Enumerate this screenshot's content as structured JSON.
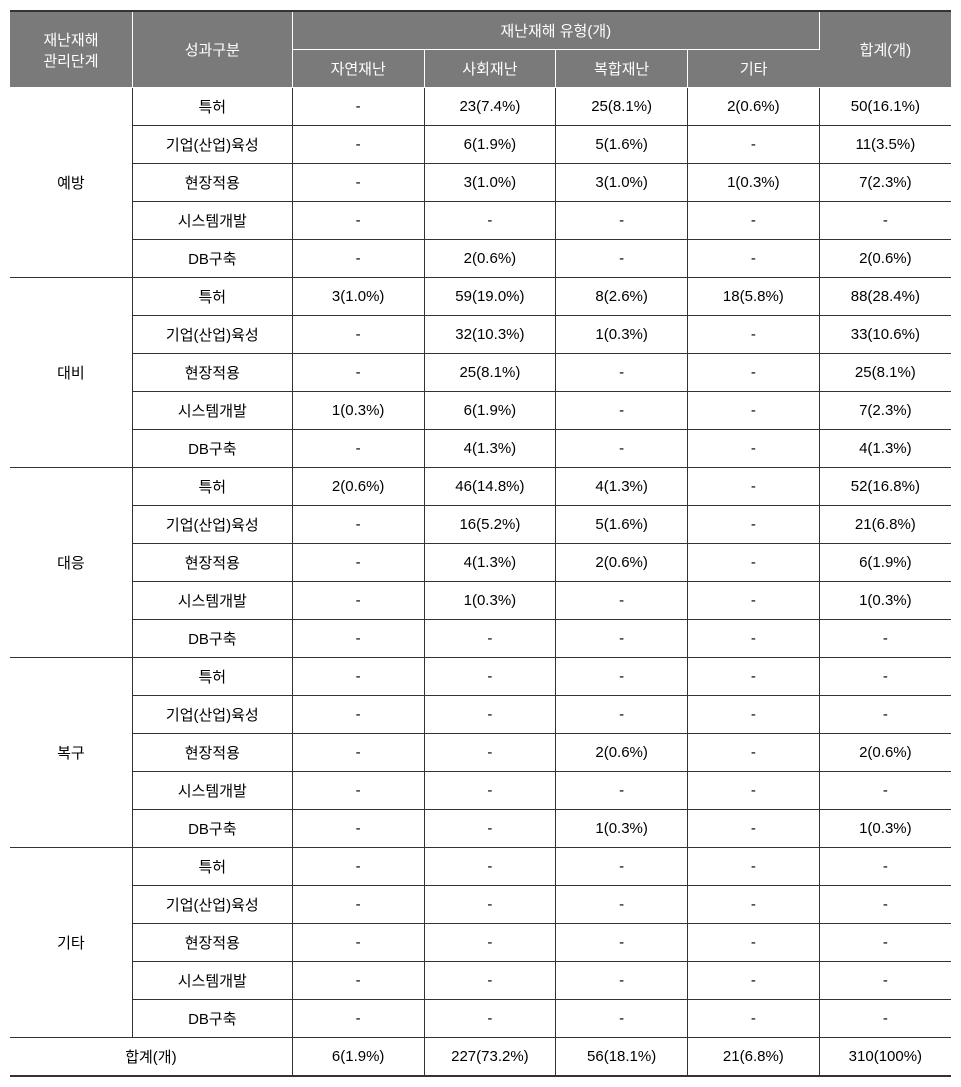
{
  "table": {
    "headers": {
      "col1": "재난재해\n관리단계",
      "col2": "성과구분",
      "col3_group": "재난재해 유형(개)",
      "col3_sub1": "자연재난",
      "col3_sub2": "사회재난",
      "col3_sub3": "복합재난",
      "col3_sub4": "기타",
      "col4": "합계(개)"
    },
    "groups": [
      {
        "name": "예방",
        "rows": [
          {
            "category": "특허",
            "v1": "-",
            "v2": "23(7.4%)",
            "v3": "25(8.1%)",
            "v4": "2(0.6%)",
            "total": "50(16.1%)"
          },
          {
            "category": "기업(산업)육성",
            "v1": "-",
            "v2": "6(1.9%)",
            "v3": "5(1.6%)",
            "v4": "-",
            "total": "11(3.5%)"
          },
          {
            "category": "현장적용",
            "v1": "-",
            "v2": "3(1.0%)",
            "v3": "3(1.0%)",
            "v4": "1(0.3%)",
            "total": "7(2.3%)"
          },
          {
            "category": "시스템개발",
            "v1": "-",
            "v2": "-",
            "v3": "-",
            "v4": "-",
            "total": "-"
          },
          {
            "category": "DB구축",
            "v1": "-",
            "v2": "2(0.6%)",
            "v3": "-",
            "v4": "-",
            "total": "2(0.6%)"
          }
        ]
      },
      {
        "name": "대비",
        "rows": [
          {
            "category": "특허",
            "v1": "3(1.0%)",
            "v2": "59(19.0%)",
            "v3": "8(2.6%)",
            "v4": "18(5.8%)",
            "total": "88(28.4%)"
          },
          {
            "category": "기업(산업)육성",
            "v1": "-",
            "v2": "32(10.3%)",
            "v3": "1(0.3%)",
            "v4": "-",
            "total": "33(10.6%)"
          },
          {
            "category": "현장적용",
            "v1": "-",
            "v2": "25(8.1%)",
            "v3": "-",
            "v4": "-",
            "total": "25(8.1%)"
          },
          {
            "category": "시스템개발",
            "v1": "1(0.3%)",
            "v2": "6(1.9%)",
            "v3": "-",
            "v4": "-",
            "total": "7(2.3%)"
          },
          {
            "category": "DB구축",
            "v1": "-",
            "v2": "4(1.3%)",
            "v3": "-",
            "v4": "-",
            "total": "4(1.3%)"
          }
        ]
      },
      {
        "name": "대응",
        "rows": [
          {
            "category": "특허",
            "v1": "2(0.6%)",
            "v2": "46(14.8%)",
            "v3": "4(1.3%)",
            "v4": "-",
            "total": "52(16.8%)"
          },
          {
            "category": "기업(산업)육성",
            "v1": "-",
            "v2": "16(5.2%)",
            "v3": "5(1.6%)",
            "v4": "-",
            "total": "21(6.8%)"
          },
          {
            "category": "현장적용",
            "v1": "-",
            "v2": "4(1.3%)",
            "v3": "2(0.6%)",
            "v4": "-",
            "total": "6(1.9%)"
          },
          {
            "category": "시스템개발",
            "v1": "-",
            "v2": "1(0.3%)",
            "v3": "-",
            "v4": "-",
            "total": "1(0.3%)"
          },
          {
            "category": "DB구축",
            "v1": "-",
            "v2": "-",
            "v3": "-",
            "v4": "-",
            "total": "-"
          }
        ]
      },
      {
        "name": "복구",
        "rows": [
          {
            "category": "특허",
            "v1": "-",
            "v2": "-",
            "v3": "-",
            "v4": "-",
            "total": "-"
          },
          {
            "category": "기업(산업)육성",
            "v1": "-",
            "v2": "-",
            "v3": "-",
            "v4": "-",
            "total": "-"
          },
          {
            "category": "현장적용",
            "v1": "-",
            "v2": "-",
            "v3": "2(0.6%)",
            "v4": "-",
            "total": "2(0.6%)"
          },
          {
            "category": "시스템개발",
            "v1": "-",
            "v2": "-",
            "v3": "-",
            "v4": "-",
            "total": "-"
          },
          {
            "category": "DB구축",
            "v1": "-",
            "v2": "-",
            "v3": "1(0.3%)",
            "v4": "-",
            "total": "1(0.3%)"
          }
        ]
      },
      {
        "name": "기타",
        "rows": [
          {
            "category": "특허",
            "v1": "-",
            "v2": "-",
            "v3": "-",
            "v4": "-",
            "total": "-"
          },
          {
            "category": "기업(산업)육성",
            "v1": "-",
            "v2": "-",
            "v3": "-",
            "v4": "-",
            "total": "-"
          },
          {
            "category": "현장적용",
            "v1": "-",
            "v2": "-",
            "v3": "-",
            "v4": "-",
            "total": "-"
          },
          {
            "category": "시스템개발",
            "v1": "-",
            "v2": "-",
            "v3": "-",
            "v4": "-",
            "total": "-"
          },
          {
            "category": "DB구축",
            "v1": "-",
            "v2": "-",
            "v3": "-",
            "v4": "-",
            "total": "-"
          }
        ]
      }
    ],
    "totals": {
      "label": "합계(개)",
      "v1": "6(1.9%)",
      "v2": "227(73.2%)",
      "v3": "56(18.1%)",
      "v4": "21(6.8%)",
      "total": "310(100%)"
    },
    "styling": {
      "header_bg": "#7a7a7a",
      "header_text": "#ffffff",
      "body_text": "#000000",
      "border_color": "#333333",
      "font_size": 15,
      "col_widths_pct": [
        13,
        17,
        14,
        14,
        14,
        14,
        14
      ]
    }
  }
}
